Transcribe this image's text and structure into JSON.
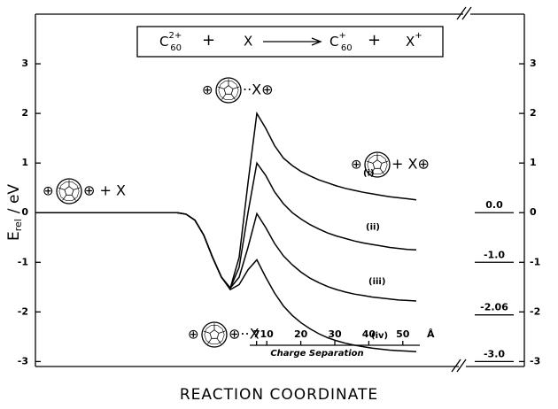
{
  "chart_data": {
    "type": "line",
    "xlabel": "REACTION COORDINATE",
    "ylabel": {
      "symbol": "E",
      "subscript": "rel",
      "unit": "/ eV"
    },
    "ylim": [
      -3.1,
      4.0
    ],
    "yticks": [
      -3,
      -2,
      -1,
      0,
      1,
      2,
      3
    ],
    "categories": [
      null,
      null,
      null,
      null,
      null,
      null,
      null,
      null,
      null,
      null,
      null,
      null,
      null,
      null,
      null,
      null,
      null,
      null,
      null,
      null,
      null,
      null,
      null,
      null,
      null,
      null,
      null,
      null,
      null,
      null,
      null,
      null,
      null,
      null,
      null,
      null,
      null,
      null,
      null,
      null,
      null,
      null,
      null,
      null
    ],
    "series": [
      {
        "name": "(i)",
        "color": "#000000",
        "values": [
          0,
          0,
          0,
          0,
          0,
          0,
          0,
          0,
          0,
          0,
          0,
          0,
          0,
          0,
          0,
          0,
          0,
          -0.03,
          -0.15,
          -0.45,
          -0.9,
          -1.3,
          -1.52,
          -0.9,
          0.6,
          2.0,
          1.7,
          1.35,
          1.1,
          0.95,
          0.83,
          0.74,
          0.66,
          0.6,
          0.54,
          0.49,
          0.45,
          0.41,
          0.38,
          0.35,
          0.32,
          0.3,
          0.28,
          0.26
        ]
      },
      {
        "name": "(ii)",
        "color": "#000000",
        "values": [
          0,
          0,
          0,
          0,
          0,
          0,
          0,
          0,
          0,
          0,
          0,
          0,
          0,
          0,
          0,
          0,
          0,
          -0.03,
          -0.15,
          -0.45,
          -0.9,
          -1.3,
          -1.52,
          -1.1,
          0.0,
          1.0,
          0.75,
          0.42,
          0.18,
          0.0,
          -0.13,
          -0.24,
          -0.33,
          -0.41,
          -0.47,
          -0.52,
          -0.57,
          -0.61,
          -0.64,
          -0.67,
          -0.7,
          -0.72,
          -0.74,
          -0.75
        ]
      },
      {
        "name": "(iii)",
        "color": "#000000",
        "values": [
          0,
          0,
          0,
          0,
          0,
          0,
          0,
          0,
          0,
          0,
          0,
          0,
          0,
          0,
          0,
          0,
          0,
          -0.03,
          -0.15,
          -0.45,
          -0.9,
          -1.3,
          -1.52,
          -1.3,
          -0.7,
          -0.02,
          -0.3,
          -0.62,
          -0.87,
          -1.05,
          -1.2,
          -1.32,
          -1.41,
          -1.49,
          -1.55,
          -1.6,
          -1.64,
          -1.67,
          -1.7,
          -1.72,
          -1.74,
          -1.76,
          -1.77,
          -1.78
        ]
      },
      {
        "name": "(iv)",
        "color": "#000000",
        "values": [
          0,
          0,
          0,
          0,
          0,
          0,
          0,
          0,
          0,
          0,
          0,
          0,
          0,
          0,
          0,
          0,
          0,
          -0.03,
          -0.15,
          -0.45,
          -0.9,
          -1.3,
          -1.55,
          -1.45,
          -1.15,
          -0.95,
          -1.3,
          -1.62,
          -1.88,
          -2.07,
          -2.22,
          -2.34,
          -2.44,
          -2.52,
          -2.58,
          -2.63,
          -2.67,
          -2.7,
          -2.73,
          -2.75,
          -2.77,
          -2.78,
          -2.79,
          -2.8
        ]
      }
    ],
    "levels": {
      "values": [
        0.0,
        -1.0,
        -2.06,
        -3.0
      ],
      "value_labels": [
        "0.0",
        "-1.0",
        "-2.06",
        "-3.0"
      ]
    },
    "inset_axis": {
      "label": "Charge Separation",
      "unit": "Å",
      "xlim": [
        5,
        55
      ],
      "xticks": [
        7,
        10,
        20,
        30,
        40,
        50
      ]
    },
    "reaction": {
      "reactant": "C",
      "reactant_sub": "60",
      "reactant_sup": "2+",
      "plus": "+",
      "partner": "X",
      "product": "C",
      "product_sub": "60",
      "product_sup": "+",
      "partner_product": "X",
      "partner_sup": "+"
    },
    "species": {
      "left": [
        "⊕",
        "⊕ + X"
      ],
      "top": [
        "⊕",
        "··X⊕"
      ],
      "bottom": [
        "⊕",
        "⊕··X"
      ],
      "right": [
        "⊕",
        "+ X⊕"
      ]
    }
  }
}
